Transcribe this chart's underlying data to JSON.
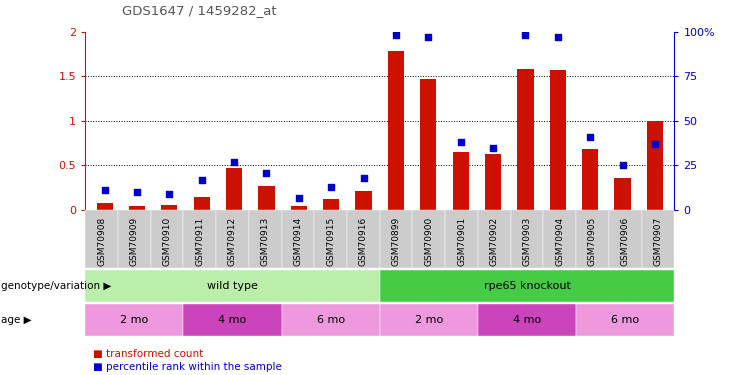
{
  "title": "GDS1647 / 1459282_at",
  "samples": [
    "GSM70908",
    "GSM70909",
    "GSM70910",
    "GSM70911",
    "GSM70912",
    "GSM70913",
    "GSM70914",
    "GSM70915",
    "GSM70916",
    "GSM70899",
    "GSM70900",
    "GSM70901",
    "GSM70902",
    "GSM70903",
    "GSM70904",
    "GSM70905",
    "GSM70906",
    "GSM70907"
  ],
  "red_bars": [
    0.08,
    0.05,
    0.06,
    0.15,
    0.47,
    0.27,
    0.04,
    0.12,
    0.21,
    1.78,
    1.47,
    0.65,
    0.63,
    1.58,
    1.57,
    0.68,
    0.36,
    1.0
  ],
  "blue_dots_pct": [
    11,
    10,
    9,
    17,
    27,
    21,
    7,
    13,
    18,
    98,
    97,
    38,
    35,
    98,
    97,
    41,
    25,
    37
  ],
  "ylim_left": [
    0,
    2.0
  ],
  "ylim_right": [
    0,
    100
  ],
  "yticks_left": [
    0,
    0.5,
    1.0,
    1.5,
    2.0
  ],
  "ytick_labels_left": [
    "0",
    "0.5",
    "1",
    "1.5",
    "2"
  ],
  "yticks_right": [
    0,
    25,
    50,
    75,
    100
  ],
  "ytick_labels_right": [
    "0",
    "25",
    "50",
    "75",
    "100%"
  ],
  "bar_color": "#cc1100",
  "dot_color": "#0000cc",
  "bg_color": "#ffffff",
  "genotype_groups": [
    {
      "label": "wild type",
      "start": 0,
      "end": 9,
      "color": "#bbeeaa"
    },
    {
      "label": "rpe65 knockout",
      "start": 9,
      "end": 18,
      "color": "#44cc44"
    }
  ],
  "age_groups": [
    {
      "label": "2 mo",
      "start": 0,
      "end": 3,
      "color": "#ee99dd"
    },
    {
      "label": "4 mo",
      "start": 3,
      "end": 6,
      "color": "#cc44bb"
    },
    {
      "label": "6 mo",
      "start": 6,
      "end": 9,
      "color": "#ee99dd"
    },
    {
      "label": "2 mo",
      "start": 9,
      "end": 12,
      "color": "#ee99dd"
    },
    {
      "label": "4 mo",
      "start": 12,
      "end": 15,
      "color": "#cc44bb"
    },
    {
      "label": "6 mo",
      "start": 15,
      "end": 18,
      "color": "#ee99dd"
    }
  ],
  "legend_red_label": "transformed count",
  "legend_blue_label": "percentile rank within the sample",
  "genotype_label": "genotype/variation",
  "age_label": "age",
  "bar_width": 0.5,
  "title_color": "#555555",
  "xtick_bg": "#cccccc"
}
